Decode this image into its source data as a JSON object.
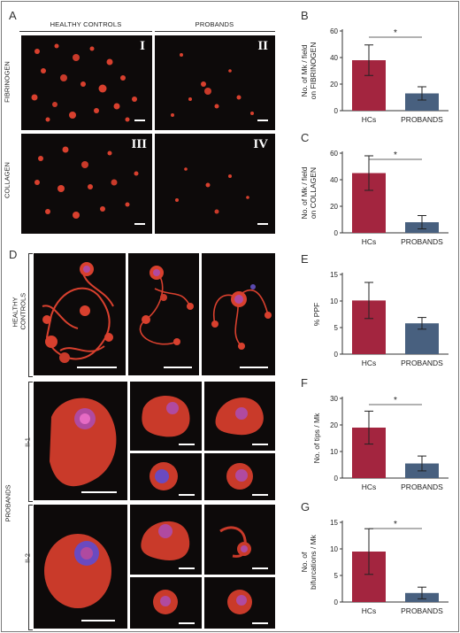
{
  "panels": {
    "A": "A",
    "B": "B",
    "C": "C",
    "D": "D",
    "E": "E",
    "F": "F",
    "G": "G"
  },
  "panel_a": {
    "col_healthy": "HEALTHY CONTROLS",
    "col_probands": "PROBANDS",
    "row_fibrinogen": "FIBRINOGEN",
    "row_collagen": "COLLAGEN",
    "tiles": [
      "I",
      "II",
      "III",
      "IV"
    ]
  },
  "panel_d": {
    "healthy_label": [
      "HEALTHY",
      "CONTROLS"
    ],
    "probands_label": "PROBANDS",
    "sub_ii1": "II-1",
    "sub_ii2": "II-2"
  },
  "colors": {
    "hcs": "#a3253f",
    "probands": "#48607f",
    "cell": "#d8402e",
    "nucleus": "#b04aa0",
    "background": "#0d0a0a"
  },
  "chart_data": [
    {
      "id": "B",
      "type": "bar",
      "categories": [
        "HCs",
        "PROBANDS"
      ],
      "values": [
        38,
        13
      ],
      "errors": [
        11.5,
        5
      ],
      "ylabel": [
        "No. of Mk / field",
        "on FIBRINOGEN"
      ],
      "ylim": [
        0,
        60
      ],
      "yticks": [
        0,
        20,
        40,
        60
      ],
      "significance": "*",
      "colors": [
        "#a3253f",
        "#48607f"
      ]
    },
    {
      "id": "C",
      "type": "bar",
      "categories": [
        "HCs",
        "PROBANDS"
      ],
      "values": [
        45,
        8
      ],
      "errors": [
        13,
        5
      ],
      "ylabel": [
        "No. of Mk / field",
        "on COLLAGEN"
      ],
      "ylim": [
        0,
        60
      ],
      "yticks": [
        0,
        20,
        40,
        60
      ],
      "significance": "*",
      "colors": [
        "#a3253f",
        "#48607f"
      ]
    },
    {
      "id": "E",
      "type": "bar",
      "categories": [
        "HCs",
        "PROBANDS"
      ],
      "values": [
        10.1,
        5.8
      ],
      "errors": [
        3.4,
        1.1
      ],
      "ylabel": [
        "% PPF"
      ],
      "ylim": [
        0,
        15
      ],
      "yticks": [
        0,
        5,
        10,
        15
      ],
      "significance": "",
      "colors": [
        "#a3253f",
        "#48607f"
      ]
    },
    {
      "id": "F",
      "type": "bar",
      "categories": [
        "HCs",
        "PROBANDS"
      ],
      "values": [
        19,
        5.5
      ],
      "errors": [
        6.2,
        2.8
      ],
      "ylabel": [
        "No. of tips / Mk"
      ],
      "ylim": [
        0,
        30
      ],
      "yticks": [
        0,
        10,
        20,
        30
      ],
      "significance": "*",
      "colors": [
        "#a3253f",
        "#48607f"
      ]
    },
    {
      "id": "G",
      "type": "bar",
      "categories": [
        "HCs",
        "PROBANDS"
      ],
      "values": [
        9.5,
        1.7
      ],
      "errors": [
        4.3,
        1.1
      ],
      "ylabel": [
        "No. of",
        "bifurcations / Mk"
      ],
      "ylim": [
        0,
        15
      ],
      "yticks": [
        0,
        5,
        10,
        15
      ],
      "significance": "*",
      "colors": [
        "#a3253f",
        "#48607f"
      ]
    }
  ]
}
